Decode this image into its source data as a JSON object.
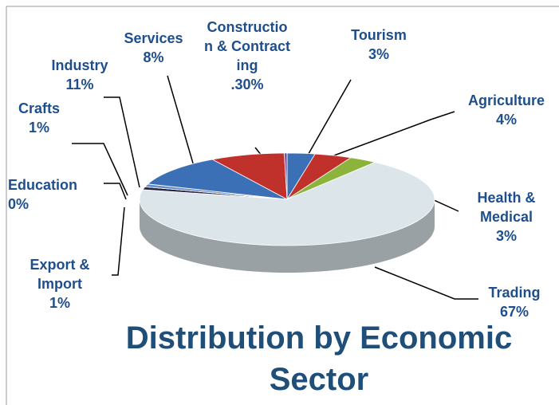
{
  "chart_data": {
    "type": "pie",
    "title": "Distribution by Economic Sector",
    "categories": [
      "Tourism",
      "Agriculture",
      "Health & Medical",
      "Trading",
      "Export & Import",
      "Education",
      "Crafts",
      "Industry",
      "Services",
      "Construction & Contracting"
    ],
    "values": [
      3,
      4,
      3,
      67,
      1,
      0,
      1,
      11,
      8,
      0.3
    ],
    "value_labels": [
      "3%",
      "4%",
      "3%",
      "67%",
      "1%",
      "0%",
      "1%",
      "11%",
      "8%",
      ".30%"
    ],
    "colors": [
      "#3b6fb6",
      "#c0312b",
      "#8cb43c",
      "#dce6ea",
      "#2a2445",
      "#d98a2e",
      "#6a8fc8",
      "#3b6fb6",
      "#c0312b",
      "#7a4fa0"
    ]
  }
}
